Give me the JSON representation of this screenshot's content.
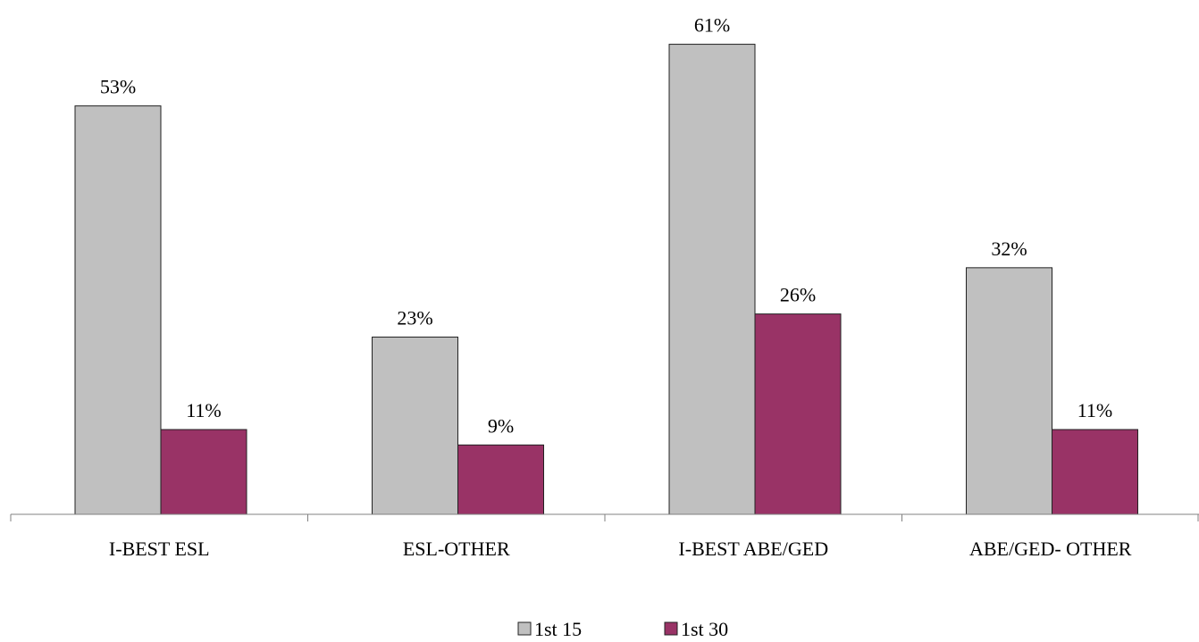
{
  "chart_data": {
    "type": "bar",
    "categories": [
      "I-BEST ESL",
      "ESL-OTHER",
      "I-BEST ABE/GED",
      "ABE/GED- OTHER"
    ],
    "series": [
      {
        "name": "1st 15",
        "values": [
          53,
          23,
          61,
          32
        ],
        "labels": [
          "53%",
          "23%",
          "61%",
          "32%"
        ],
        "color": "#c0c0c0"
      },
      {
        "name": "1st 30",
        "values": [
          11,
          9,
          26,
          11
        ],
        "labels": [
          "11%",
          "9%",
          "26%",
          "11%"
        ],
        "color": "#993366"
      }
    ],
    "title": "",
    "xlabel": "",
    "ylabel": "",
    "ylim": [
      0,
      66
    ],
    "grid": false,
    "legend": "bottom"
  }
}
